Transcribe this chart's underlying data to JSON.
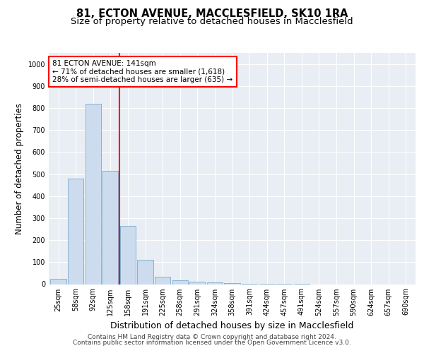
{
  "title_line1": "81, ECTON AVENUE, MACCLESFIELD, SK10 1RA",
  "title_line2": "Size of property relative to detached houses in Macclesfield",
  "xlabel": "Distribution of detached houses by size in Macclesfield",
  "ylabel": "Number of detached properties",
  "bar_color": "#ccdcee",
  "bar_edge_color": "#7aaace",
  "vline_color": "red",
  "annotation_line1": "81 ECTON AVENUE: 141sqm",
  "annotation_line2": "← 71% of detached houses are smaller (1,618)",
  "annotation_line3": "28% of semi-detached houses are larger (635) →",
  "annotation_box_color": "white",
  "annotation_box_edge": "red",
  "footer_line1": "Contains HM Land Registry data © Crown copyright and database right 2024.",
  "footer_line2": "Contains public sector information licensed under the Open Government Licence v3.0.",
  "categories": [
    "25sqm",
    "58sqm",
    "92sqm",
    "125sqm",
    "158sqm",
    "191sqm",
    "225sqm",
    "258sqm",
    "291sqm",
    "324sqm",
    "358sqm",
    "391sqm",
    "424sqm",
    "457sqm",
    "491sqm",
    "524sqm",
    "557sqm",
    "590sqm",
    "624sqm",
    "657sqm",
    "690sqm"
  ],
  "values": [
    25,
    478,
    820,
    515,
    265,
    110,
    35,
    18,
    10,
    8,
    6,
    3,
    2,
    1,
    1,
    0,
    0,
    0,
    0,
    0,
    0
  ],
  "ylim": [
    0,
    1050
  ],
  "yticks": [
    0,
    100,
    200,
    300,
    400,
    500,
    600,
    700,
    800,
    900,
    1000
  ],
  "background_color": "#e8eef4",
  "grid_color": "white",
  "title_fontsize": 10.5,
  "subtitle_fontsize": 9.5,
  "ylabel_fontsize": 8.5,
  "xlabel_fontsize": 9,
  "tick_fontsize": 7,
  "annot_fontsize": 7.5,
  "footer_fontsize": 6.5
}
